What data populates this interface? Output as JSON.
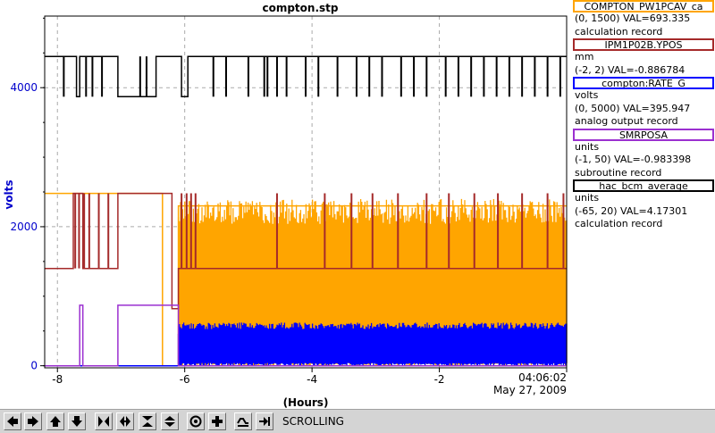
{
  "chart_data": {
    "type": "line",
    "title": "compton.stp",
    "xlabel": "(Hours)",
    "ylabel": "volts",
    "xlim": [
      -8.2,
      0
    ],
    "ylim": [
      -30,
      5030
    ],
    "x_ticks": [
      -8,
      -6,
      -4,
      -2
    ],
    "x_tick_labels": [
      "-8",
      "-6",
      "-4",
      "-2"
    ],
    "y_ticks": [
      0,
      2000,
      4000
    ],
    "y_tick_labels": [
      "0",
      "2000",
      "4000"
    ],
    "end_time": "04:06:02",
    "end_date": "May 27, 2009",
    "grid": true,
    "series": [
      {
        "name": "COMPTON_PW1PCAV_ca",
        "color": "#ffa500",
        "points": [
          [
            -8.2,
            2480
          ],
          [
            -6.35,
            2480
          ],
          [
            -6.35,
            0
          ],
          [
            -6.1,
            0
          ],
          [
            -6.1,
            2300
          ],
          [
            0,
            2300
          ]
        ],
        "band": {
          "x_from": -6.1,
          "x_to": 0,
          "low": 0,
          "high": 2400
        }
      },
      {
        "name": "IPM1P02B.YPOS",
        "color": "#a52a2a",
        "points": [
          [
            -8.2,
            1400
          ],
          [
            -7.75,
            1400
          ],
          [
            -7.75,
            2480
          ],
          [
            -7.6,
            2480
          ],
          [
            -7.6,
            1400
          ],
          [
            -7.05,
            1400
          ],
          [
            -7.05,
            2480
          ],
          [
            -6.2,
            2480
          ],
          [
            -6.2,
            820
          ],
          [
            -6.1,
            820
          ],
          [
            -6.1,
            1400
          ],
          [
            0,
            1400
          ]
        ],
        "spikes_x": [
          -7.72,
          -7.66,
          -7.58,
          -7.5,
          -7.35,
          -7.2,
          -6.05,
          -5.97,
          -5.9,
          -5.83,
          -4.55,
          -3.8,
          -3.38,
          -3.05,
          -2.65,
          -2.2,
          -1.85,
          -1.45,
          -1.08,
          -0.7,
          -0.3,
          -0.05
        ],
        "spike_value": 2480
      },
      {
        "name": "compton:RATE_G",
        "color": "#0000ff",
        "points": [
          [
            -8.2,
            0
          ],
          [
            -6.1,
            0
          ],
          [
            -6.1,
            450
          ],
          [
            0,
            450
          ]
        ],
        "band": {
          "x_from": -6.1,
          "x_to": 0,
          "low": 0,
          "high": 620
        }
      },
      {
        "name": "SMRPOSA",
        "color": "#9b30d0",
        "points": [
          [
            -8.2,
            0
          ],
          [
            -7.65,
            0
          ],
          [
            -7.65,
            870
          ],
          [
            -7.6,
            870
          ],
          [
            -7.6,
            0
          ],
          [
            -7.05,
            0
          ],
          [
            -7.05,
            870
          ],
          [
            -6.1,
            870
          ],
          [
            -6.1,
            0
          ],
          [
            0,
            0
          ]
        ]
      },
      {
        "name": "hac_bcm_average",
        "color": "#000000",
        "points": [
          [
            -8.2,
            4450
          ],
          [
            -7.7,
            4450
          ],
          [
            -7.7,
            3870
          ],
          [
            -7.65,
            3870
          ],
          [
            -7.65,
            4450
          ],
          [
            -7.05,
            4450
          ],
          [
            -7.05,
            3870
          ],
          [
            -6.45,
            3870
          ],
          [
            -6.45,
            4450
          ],
          [
            -6.05,
            4450
          ],
          [
            -6.05,
            3870
          ],
          [
            -5.95,
            3870
          ],
          [
            -5.95,
            4450
          ],
          [
            0,
            4450
          ]
        ],
        "spikes_x": [
          -7.9,
          -7.55,
          -7.45,
          -7.3,
          -6.7,
          -6.6,
          -5.55,
          -5.35,
          -5.0,
          -4.75,
          -4.7,
          -4.55,
          -4.4,
          -4.1,
          -3.9,
          -3.6,
          -3.3,
          -3.1,
          -2.9,
          -2.6,
          -2.4,
          -2.2,
          -1.9,
          -1.7,
          -1.5,
          -1.3,
          -1.1,
          -0.9,
          -0.7,
          -0.5,
          -0.3,
          -0.1
        ],
        "spike_value": 3870
      }
    ]
  },
  "legend": {
    "entries": [
      {
        "name": "COMPTON_PW1PCAV_ca",
        "color": "#ffa500",
        "unit": "",
        "range": "(0, 1500) VAL=693.335",
        "record": "calculation record"
      },
      {
        "name": "IPM1P02B.YPOS",
        "color": "#a52a2a",
        "unit": "mm",
        "range": "(-2, 2) VAL=-0.886784",
        "record": ""
      },
      {
        "name": "compton:RATE_G",
        "color": "#0000ff",
        "unit": "volts",
        "range": "(0, 5000) VAL=395.947",
        "record": "analog output record"
      },
      {
        "name": "SMRPOSA",
        "color": "#9b30d0",
        "unit": "units",
        "range": "(-1, 50) VAL=-0.983398",
        "record": "subroutine record"
      },
      {
        "name": "hac_bcm_average",
        "color": "#000000",
        "unit": "units",
        "range": "(-65, 20) VAL=4.17301",
        "record": "calculation record"
      }
    ]
  },
  "toolbar": {
    "buttons": [
      "scroll-left",
      "scroll-right",
      "scroll-up",
      "scroll-down",
      "zoom-in-x",
      "zoom-out-x",
      "zoom-in-y",
      "zoom-out-y",
      "reset",
      "add",
      "config-a",
      "config-b"
    ],
    "status": "SCROLLING"
  }
}
